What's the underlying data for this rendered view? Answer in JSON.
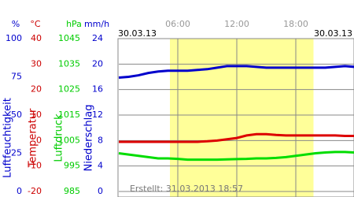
{
  "chart_data": {
    "type": "line",
    "date_left": "30.03.13",
    "date_right": "30.03.13",
    "footer": "Erstellt: 31.03.2013 18:57",
    "xlim": [
      0,
      24
    ],
    "xticks": [
      {
        "value": 6,
        "label": "06:00"
      },
      {
        "value": 12,
        "label": "12:00"
      },
      {
        "value": 18,
        "label": "18:00"
      }
    ],
    "daylight": [
      5.2,
      19.8
    ],
    "daylight_color": "#ffff99",
    "axes": [
      {
        "unit": "%",
        "title": "Luftfeuchtigkeit",
        "color": "#0000cc",
        "ylim": [
          0,
          100
        ],
        "yticks": [
          0,
          25,
          50,
          75,
          100
        ]
      },
      {
        "unit": "°C",
        "title": "Temperatur",
        "color": "#cc0000",
        "ylim": [
          -20,
          40
        ],
        "yticks": [
          -20,
          -10,
          0,
          10,
          20,
          30,
          40
        ]
      },
      {
        "unit": "hPa",
        "title": "Luftdruck",
        "color": "#00cc00",
        "ylim": [
          985,
          1045
        ],
        "yticks": [
          985,
          995,
          1005,
          1015,
          1025,
          1035,
          1045
        ]
      },
      {
        "unit": "mm/h",
        "title": "Niederschlag",
        "color": "#0000cc",
        "ylim": [
          0,
          24
        ],
        "yticks": [
          0,
          4,
          8,
          12,
          16,
          20,
          24
        ]
      }
    ],
    "grid_axis": 3,
    "x": [
      0,
      1,
      2,
      3,
      4,
      5,
      6,
      7,
      8,
      9,
      10,
      11,
      12,
      13,
      14,
      15,
      16,
      17,
      18,
      19,
      20,
      21,
      22,
      23,
      24
    ],
    "series": [
      {
        "axis": 0,
        "color": "#0000cc",
        "values": [
          74.5,
          75,
          76,
          77.5,
          78.5,
          79,
          79,
          79,
          79.5,
          80,
          81,
          82,
          82,
          82,
          81.5,
          81,
          81,
          81,
          81,
          81,
          81,
          81,
          81.5,
          82,
          81.5
        ]
      },
      {
        "axis": 1,
        "color": "#dd0000",
        "values": [
          -0.5,
          -0.5,
          -0.5,
          -0.5,
          -0.5,
          -0.5,
          -0.5,
          -0.5,
          -0.5,
          -0.3,
          0,
          0.5,
          1,
          2,
          2.5,
          2.5,
          2.2,
          2,
          2,
          2,
          2,
          2,
          2,
          1.8,
          1.8
        ]
      },
      {
        "axis": 2,
        "color": "#00dd00",
        "values": [
          1000,
          999.5,
          999,
          998.5,
          998,
          998,
          997.8,
          997.5,
          997.5,
          997.5,
          997.5,
          997.6,
          997.7,
          997.8,
          998,
          998,
          998.2,
          998.5,
          999,
          999.5,
          1000,
          1000.3,
          1000.5,
          1000.5,
          1000.3
        ]
      }
    ]
  }
}
